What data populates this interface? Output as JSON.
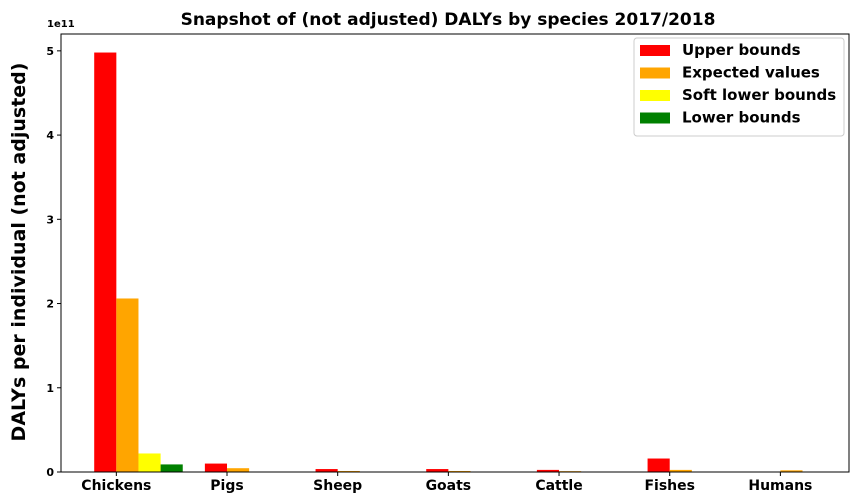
{
  "chart_data": {
    "type": "bar",
    "title": "Snapshot of (not adjusted) DALYs by species 2017/2018",
    "xlabel": "",
    "ylabel": "DALYs per individual (not adjusted)",
    "y_offset_label": "1e11",
    "ylim": [
      0,
      5.2
    ],
    "yticks": [
      0,
      1,
      2,
      3,
      4,
      5
    ],
    "categories": [
      "Chickens",
      "Pigs",
      "Sheep",
      "Goats",
      "Cattle",
      "Fishes",
      "Humans"
    ],
    "series": [
      {
        "name": "Upper bounds",
        "color": "#ff0000",
        "values": [
          4.98,
          0.1,
          0.035,
          0.035,
          0.025,
          0.16,
          0.0
        ]
      },
      {
        "name": "Expected values",
        "color": "#ffa500",
        "values": [
          2.06,
          0.045,
          0.012,
          0.012,
          0.01,
          0.025,
          0.02
        ]
      },
      {
        "name": "Soft lower bounds",
        "color": "#ffff00",
        "values": [
          0.22,
          0.0,
          0.0,
          0.0,
          0.0,
          0.0,
          0.0
        ]
      },
      {
        "name": "Lower bounds",
        "color": "#008000",
        "values": [
          0.09,
          0.0,
          0.0,
          0.0,
          0.0,
          0.0,
          0.0
        ]
      }
    ],
    "grid": false,
    "legend_position": "top-right"
  }
}
